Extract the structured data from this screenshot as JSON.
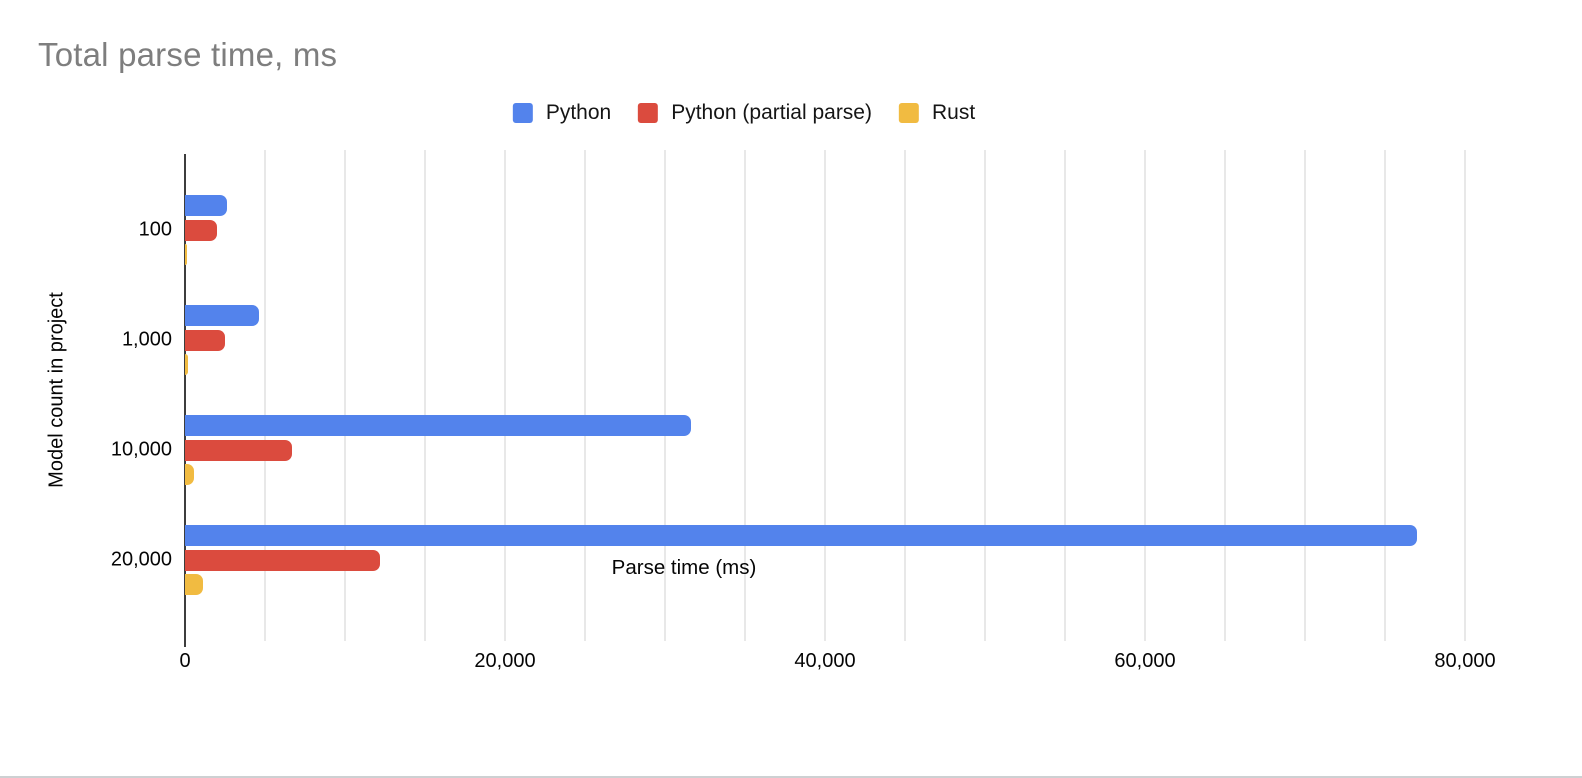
{
  "chart_data": {
    "type": "bar",
    "orientation": "horizontal",
    "title": "Total parse time, ms",
    "xlabel": "Parse time (ms)",
    "ylabel": "Model count in project",
    "categories": [
      "100",
      "1,000",
      "10,000",
      "20,000"
    ],
    "series": [
      {
        "name": "Python",
        "color": "#5383EC",
        "values": [
          2600,
          4600,
          31600,
          77000
        ]
      },
      {
        "name": "Python (partial parse)",
        "color": "#DB4B3E",
        "values": [
          2000,
          2500,
          6700,
          12200
        ]
      },
      {
        "name": "Rust",
        "color": "#F1BB41",
        "values": [
          130,
          160,
          560,
          1100
        ]
      }
    ],
    "x_axis": {
      "min": 0,
      "max": 85500,
      "tick_step": 20000,
      "tick_labels": [
        "0",
        "20,000",
        "40,000",
        "60,000",
        "80,000"
      ],
      "grid_step": 5000,
      "grid_max": 80000
    },
    "legend_position": "top-center",
    "grid": true
  },
  "style": {
    "title_color": "#7e7e7e",
    "axis_line_color": "#3d3d3d",
    "gridline_color": "#e8e8e8",
    "text_color": "#050505",
    "background": "#ffffff"
  }
}
